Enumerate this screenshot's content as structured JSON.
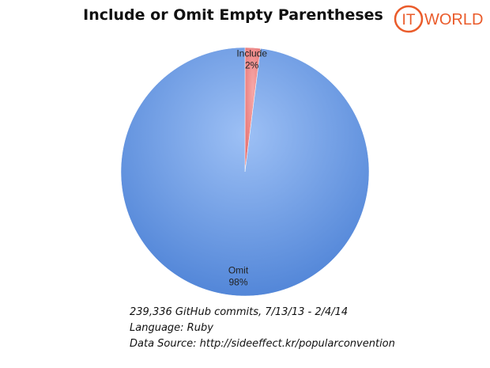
{
  "chart_data": {
    "type": "pie",
    "title": "Include or Omit Empty Parentheses",
    "slices": [
      {
        "label": "Include",
        "value": 2,
        "value_label": "2%",
        "color": "#f08c8c"
      },
      {
        "label": "Omit",
        "value": 98,
        "value_label": "98%",
        "color": "#6f9ee6"
      }
    ],
    "start_angle_deg": 0,
    "direction": "clockwise",
    "legend": "none"
  },
  "logo": {
    "text_it": "IT",
    "text_world": "WORLD",
    "color": "#ea5b2a"
  },
  "footnote": {
    "line1": "239,336 GitHub commits, 7/13/13 - 2/4/14",
    "line2": "Language: Ruby",
    "line3": "Data Source: http://sideeffect.kr/popularconvention"
  }
}
